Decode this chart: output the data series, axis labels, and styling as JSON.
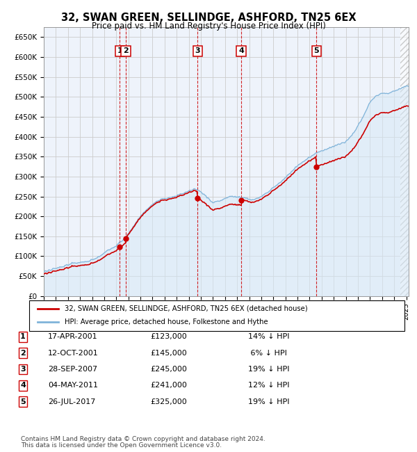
{
  "title": "32, SWAN GREEN, SELLINDGE, ASHFORD, TN25 6EX",
  "subtitle": "Price paid vs. HM Land Registry's House Price Index (HPI)",
  "ylabel_ticks": [
    "£0",
    "£50K",
    "£100K",
    "£150K",
    "£200K",
    "£250K",
    "£300K",
    "£350K",
    "£400K",
    "£450K",
    "£500K",
    "£550K",
    "£600K",
    "£650K"
  ],
  "ytick_values": [
    0,
    50000,
    100000,
    150000,
    200000,
    250000,
    300000,
    350000,
    400000,
    450000,
    500000,
    550000,
    600000,
    650000
  ],
  "ylim": [
    0,
    675000
  ],
  "xlim_start": 1995.0,
  "xlim_end": 2025.2,
  "transactions": [
    {
      "label": "1",
      "date_num": 2001.29,
      "price": 123000
    },
    {
      "label": "2",
      "date_num": 2001.78,
      "price": 145000
    },
    {
      "label": "3",
      "date_num": 2007.74,
      "price": 245000
    },
    {
      "label": "4",
      "date_num": 2011.34,
      "price": 241000
    },
    {
      "label": "5",
      "date_num": 2017.56,
      "price": 325000
    }
  ],
  "legend_line1": "32, SWAN GREEN, SELLINDGE, ASHFORD, TN25 6EX (detached house)",
  "legend_line2": "HPI: Average price, detached house, Folkestone and Hythe",
  "table_rows": [
    [
      "1",
      "17-APR-2001",
      "£123,000",
      "14% ↓ HPI"
    ],
    [
      "2",
      "12-OCT-2001",
      "£145,000",
      " 6% ↓ HPI"
    ],
    [
      "3",
      "28-SEP-2007",
      "£245,000",
      "19% ↓ HPI"
    ],
    [
      "4",
      "04-MAY-2011",
      "£241,000",
      "12% ↓ HPI"
    ],
    [
      "5",
      "26-JUL-2017",
      "£325,000",
      "19% ↓ HPI"
    ]
  ],
  "footer1": "Contains HM Land Registry data © Crown copyright and database right 2024.",
  "footer2": "This data is licensed under the Open Government Licence v3.0.",
  "property_color": "#cc0000",
  "hpi_color": "#7fb3d9",
  "hpi_fill_color": "#d6e8f7",
  "background_color": "#ffffff",
  "grid_color": "#cccccc",
  "plot_bg_color": "#eef3fb"
}
